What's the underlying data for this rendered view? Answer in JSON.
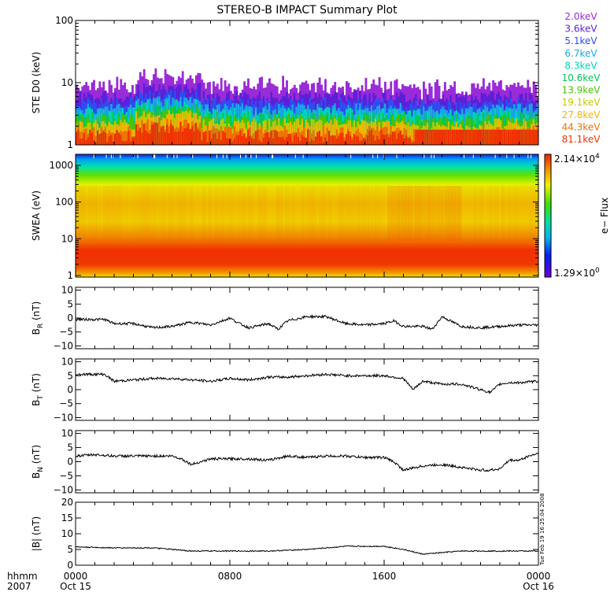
{
  "title": "STEREO-B IMPACT Summary Plot",
  "stamp": "Tue Feb 19 16:25:04 2008",
  "time_axis": {
    "hhmm_label": "hhmm",
    "year_label": "2007",
    "ticks": [
      {
        "hour": 0,
        "time": "0000",
        "date": "Oct 15"
      },
      {
        "hour": 8,
        "time": "0800",
        "date": ""
      },
      {
        "hour": 16,
        "time": "1600",
        "date": ""
      },
      {
        "hour": 24,
        "time": "0000",
        "date": "Oct 16"
      }
    ]
  },
  "chart_data": [
    {
      "type": "line",
      "id": "ste",
      "ylabel": "STE D0 (keV)",
      "yscale": "log",
      "ylim": [
        1,
        100
      ],
      "yticks": [
        {
          "v": 1,
          "label": "1"
        },
        {
          "v": 10,
          "label": "10"
        },
        {
          "v": 100,
          "label": "100"
        }
      ],
      "xlim": [
        0,
        24
      ],
      "series": [
        {
          "name": "2.0keV",
          "color": "#9a2bd8",
          "level": 7.5
        },
        {
          "name": "3.6keV",
          "color": "#5a1fd8",
          "level": 5.5
        },
        {
          "name": "5.1keV",
          "color": "#2a4ff0",
          "level": 4.3
        },
        {
          "name": "6.7keV",
          "color": "#19a6e8",
          "level": 3.5
        },
        {
          "name": "8.3keV",
          "color": "#00d6b4",
          "level": 3.0
        },
        {
          "name": "10.6keV",
          "color": "#00c85a",
          "level": 2.6
        },
        {
          "name": "13.9keV",
          "color": "#49c400",
          "level": 2.3
        },
        {
          "name": "19.1keV",
          "color": "#c8c800",
          "level": 2.0
        },
        {
          "name": "27.8keV",
          "color": "#f5b400",
          "level": 1.8
        },
        {
          "name": "44.3keV",
          "color": "#f07000",
          "level": 1.5
        },
        {
          "name": "81.1keV",
          "color": "#f03000",
          "level": 1.3
        }
      ]
    },
    {
      "type": "heatmap",
      "id": "swea",
      "ylabel": "SWEA (eV)",
      "yscale": "log",
      "ylim": [
        0.9,
        2000
      ],
      "yticks": [
        {
          "v": 1,
          "label": "1"
        },
        {
          "v": 10,
          "label": "10"
        },
        {
          "v": 100,
          "label": "100"
        },
        {
          "v": 1000,
          "label": "1000"
        }
      ],
      "xlim": [
        0,
        24
      ],
      "colorbar": {
        "label": "e− Flux",
        "max_mantissa": "2.14×10",
        "max_exp": "4",
        "min_mantissa": "1.29×10",
        "min_exp": "0"
      }
    },
    {
      "type": "line",
      "id": "br",
      "ylabel": "B",
      "ysub": "R",
      "yunit": "(nT)",
      "ylim": [
        -11,
        11
      ],
      "yticks": [
        {
          "v": -10,
          "label": "−10"
        },
        {
          "v": -5,
          "label": "−5"
        },
        {
          "v": 0,
          "label": "0"
        },
        {
          "v": 5,
          "label": "5"
        },
        {
          "v": 10,
          "label": "10"
        }
      ],
      "xlim": [
        0,
        24
      ],
      "x": [
        0,
        1.5,
        2,
        3,
        4,
        5,
        6,
        7,
        8,
        8.5,
        9,
        10,
        10.5,
        11,
        12,
        13,
        14,
        15,
        16,
        16.5,
        17,
        18,
        18.5,
        19,
        20,
        21,
        22,
        23,
        24
      ],
      "y": [
        -0.5,
        -0.5,
        -2,
        -2,
        -3.5,
        -3,
        -1.5,
        -2.5,
        0,
        -2,
        -3.5,
        -2,
        -4,
        -1,
        0.5,
        0.5,
        -2,
        -2.5,
        -2,
        -1,
        -3,
        -3,
        -4,
        0.5,
        -3,
        -3.5,
        -3,
        -2.5,
        -2.5
      ]
    },
    {
      "type": "line",
      "id": "bt",
      "ylabel": "B",
      "ysub": "T",
      "yunit": "(nT)",
      "ylim": [
        -11,
        11
      ],
      "yticks": [
        {
          "v": -10,
          "label": "−10"
        },
        {
          "v": -5,
          "label": "−5"
        },
        {
          "v": 0,
          "label": "0"
        },
        {
          "v": 5,
          "label": "5"
        },
        {
          "v": 10,
          "label": "10"
        }
      ],
      "xlim": [
        0,
        24
      ],
      "x": [
        0,
        1.5,
        2,
        3,
        4,
        5,
        6,
        7,
        8,
        9,
        10,
        11,
        12,
        13,
        14,
        15,
        16,
        17,
        17.5,
        18,
        19,
        20,
        21,
        21.5,
        22,
        22.5,
        23,
        24
      ],
      "y": [
        5.5,
        5.5,
        3,
        3.5,
        4,
        4,
        3.5,
        3,
        4,
        3.5,
        4.5,
        4.5,
        5,
        5.5,
        5,
        5,
        5,
        4,
        0,
        3,
        2,
        2,
        0,
        -1,
        2,
        2.5,
        2.5,
        3
      ]
    },
    {
      "type": "line",
      "id": "bn",
      "ylabel": "B",
      "ysub": "N",
      "yunit": "(nT)",
      "ylim": [
        -11,
        11
      ],
      "yticks": [
        {
          "v": -10,
          "label": "−10"
        },
        {
          "v": -5,
          "label": "−5"
        },
        {
          "v": 0,
          "label": "0"
        },
        {
          "v": 5,
          "label": "5"
        },
        {
          "v": 10,
          "label": "10"
        }
      ],
      "xlim": [
        0,
        24
      ],
      "x": [
        0,
        1,
        2,
        3,
        4,
        5,
        5.5,
        6,
        7,
        8,
        9,
        10,
        11,
        12,
        13,
        14,
        15,
        16,
        16.5,
        17,
        18,
        19,
        20,
        21,
        21.5,
        22,
        22.5,
        23,
        23.5,
        24
      ],
      "y": [
        2,
        2.5,
        2,
        2,
        2,
        2,
        1,
        -1,
        1,
        1,
        1,
        0.5,
        2,
        1.5,
        2,
        2,
        1.5,
        1.5,
        0,
        -3,
        -1.5,
        -1,
        -2,
        -3,
        -3,
        -2.5,
        0.5,
        0.5,
        2,
        3
      ]
    },
    {
      "type": "line",
      "id": "bmag",
      "ylabel": "|B| (nT)",
      "ylim": [
        0,
        20
      ],
      "yticks": [
        {
          "v": 0,
          "label": "0"
        },
        {
          "v": 5,
          "label": "5"
        },
        {
          "v": 10,
          "label": "10"
        },
        {
          "v": 15,
          "label": "15"
        },
        {
          "v": 20,
          "label": "20"
        }
      ],
      "xlim": [
        0,
        24
      ],
      "x": [
        0,
        2,
        4,
        6,
        8,
        10,
        12,
        14,
        16,
        17,
        18,
        19,
        20,
        21,
        22,
        23,
        24
      ],
      "y": [
        5.8,
        5.5,
        5.5,
        4.5,
        4.5,
        4.5,
        5,
        6,
        6,
        5,
        3.5,
        4,
        4.5,
        4.5,
        4.5,
        4.5,
        4.5
      ]
    }
  ]
}
